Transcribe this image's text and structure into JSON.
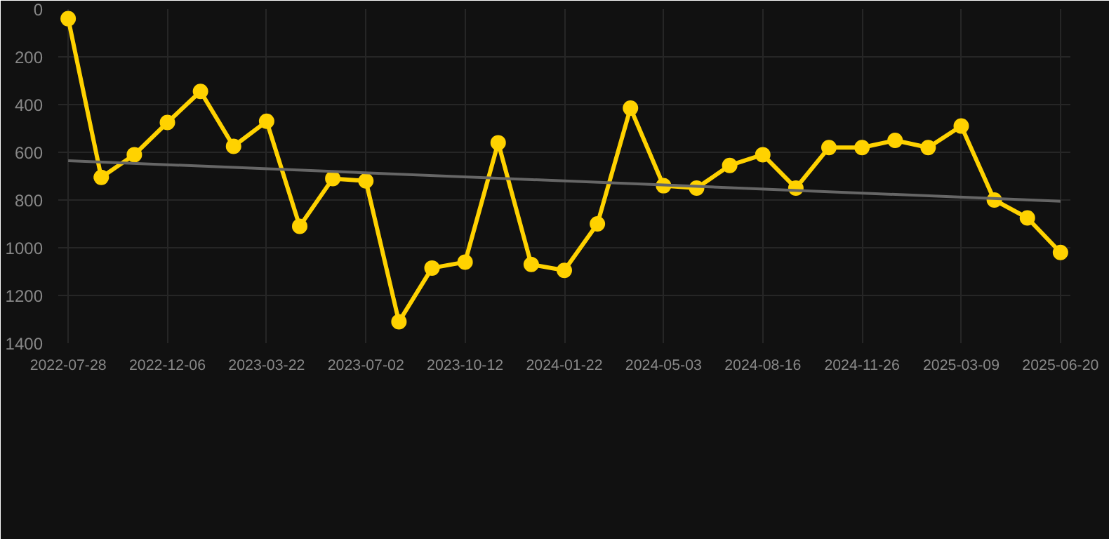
{
  "chart_data": {
    "type": "line",
    "categories": [
      "2022-07-28",
      null,
      null,
      "2022-12-06",
      null,
      null,
      "2023-03-22",
      null,
      null,
      "2023-07-02",
      null,
      null,
      "2023-10-12",
      null,
      null,
      "2024-01-22",
      null,
      null,
      "2024-05-03",
      null,
      null,
      "2024-08-16",
      null,
      null,
      "2024-11-26",
      null,
      null,
      "2025-03-09",
      null,
      null,
      "2025-06-20"
    ],
    "series": [
      {
        "color": "#ffd200",
        "marker": "circle",
        "values": [
          40,
          705,
          610,
          475,
          345,
          575,
          470,
          910,
          710,
          720,
          1310,
          1085,
          1060,
          560,
          1070,
          1095,
          900,
          415,
          740,
          750,
          655,
          610,
          750,
          580,
          580,
          550,
          580,
          490,
          800,
          875,
          1020
        ]
      },
      {
        "type": "line",
        "color": "#666666",
        "marker": "none",
        "values": [
          635,
          null,
          null,
          null,
          null,
          null,
          null,
          null,
          null,
          null,
          null,
          null,
          null,
          null,
          null,
          null,
          null,
          null,
          null,
          null,
          null,
          null,
          null,
          null,
          null,
          null,
          null,
          null,
          null,
          null,
          805
        ]
      }
    ],
    "ylim": [
      1400,
      0
    ],
    "yticks": [
      0,
      200,
      400,
      600,
      800,
      1000,
      1200,
      1400
    ],
    "grid": true
  }
}
